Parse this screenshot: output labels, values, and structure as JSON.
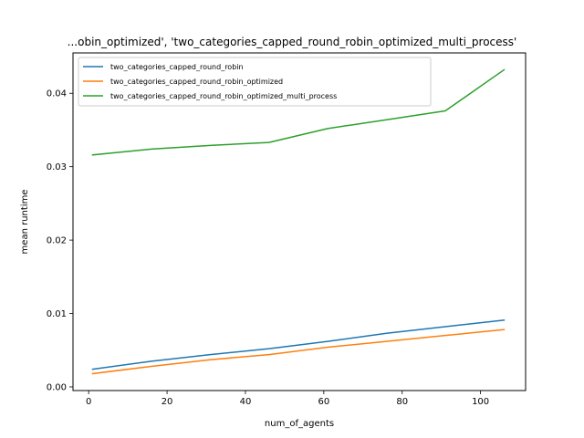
{
  "chart_data": {
    "type": "line",
    "title": "...obin_optimized', 'two_categories_capped_round_robin_optimized_multi_process'",
    "xlabel": "num_of_agents",
    "ylabel": "mean runtime",
    "xlim": [
      -4,
      111.5
    ],
    "ylim": [
      -0.0005,
      0.0455
    ],
    "xticks": [
      0,
      20,
      40,
      60,
      80,
      100
    ],
    "xtick_labels": [
      "0",
      "20",
      "40",
      "60",
      "80",
      "100"
    ],
    "yticks": [
      0.0,
      0.01,
      0.02,
      0.03,
      0.04
    ],
    "ytick_labels": [
      "0.00",
      "0.01",
      "0.02",
      "0.03",
      "0.04"
    ],
    "grid": false,
    "legend_position": "top-left",
    "x": [
      1,
      16,
      31,
      46,
      61,
      76,
      91,
      106
    ],
    "series": [
      {
        "name": "two_categories_capped_round_robin",
        "color": "#1f77b4",
        "values": [
          0.0024,
          0.0035,
          0.0044,
          0.0052,
          0.0062,
          0.0073,
          0.0082,
          0.0091
        ]
      },
      {
        "name": "two_categories_capped_round_robin_optimized",
        "color": "#ff7f0e",
        "values": [
          0.0018,
          0.0028,
          0.0037,
          0.0044,
          0.0054,
          0.0062,
          0.007,
          0.0078
        ]
      },
      {
        "name": "two_categories_capped_round_robin_optimized_multi_process",
        "color": "#2ca02c",
        "values": [
          0.0316,
          0.0324,
          0.0329,
          0.0333,
          0.0352,
          0.0364,
          0.0376,
          0.0432
        ]
      }
    ]
  }
}
